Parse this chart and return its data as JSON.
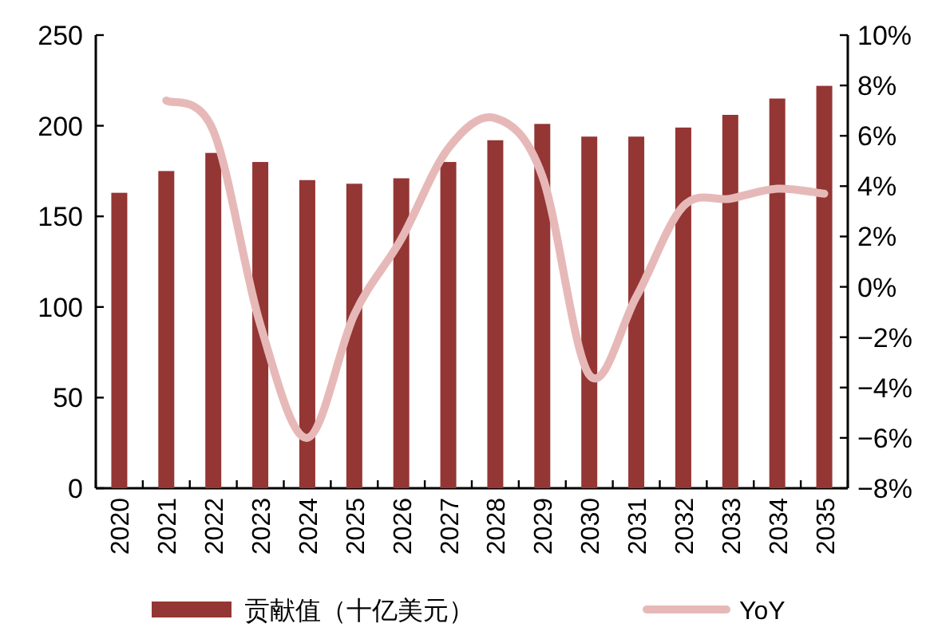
{
  "chart_data": {
    "type": "bar",
    "categories": [
      "2020",
      "2021",
      "2022",
      "2023",
      "2024",
      "2025",
      "2026",
      "2027",
      "2028",
      "2029",
      "2030",
      "2031",
      "2032",
      "2033",
      "2034",
      "2035"
    ],
    "series": [
      {
        "name": "贡献值（十亿美元）",
        "color": "#943634",
        "values": [
          163,
          175,
          185,
          180,
          170,
          168,
          171,
          180,
          192,
          201,
          194,
          194,
          199,
          206,
          215,
          222
        ]
      },
      {
        "name": "YoY",
        "type": "line",
        "axis": "y2",
        "color": "#e6b9b8",
        "values": [
          null,
          7.4,
          6.2,
          -1.5,
          -6.0,
          -1.1,
          1.9,
          5.5,
          6.7,
          4.4,
          -3.5,
          -0.4,
          3.2,
          3.5,
          3.9,
          3.7
        ]
      }
    ],
    "ylim": [
      0,
      250
    ],
    "yticks": [
      0,
      50,
      100,
      150,
      200,
      250
    ],
    "y2lim": [
      -8,
      10
    ],
    "y2ticks": [
      {
        "value": -8,
        "label": "−8%"
      },
      {
        "value": -6,
        "label": "−6%"
      },
      {
        "value": -4,
        "label": "−4%"
      },
      {
        "value": -2,
        "label": "−2%"
      },
      {
        "value": 0,
        "label": "0%"
      },
      {
        "value": 2,
        "label": "2%"
      },
      {
        "value": 4,
        "label": "4%"
      },
      {
        "value": 6,
        "label": "6%"
      },
      {
        "value": 8,
        "label": "8%"
      },
      {
        "value": 10,
        "label": "10%"
      }
    ],
    "legend": "bottom",
    "grid": false,
    "marker": "none",
    "line_style": "solid"
  }
}
